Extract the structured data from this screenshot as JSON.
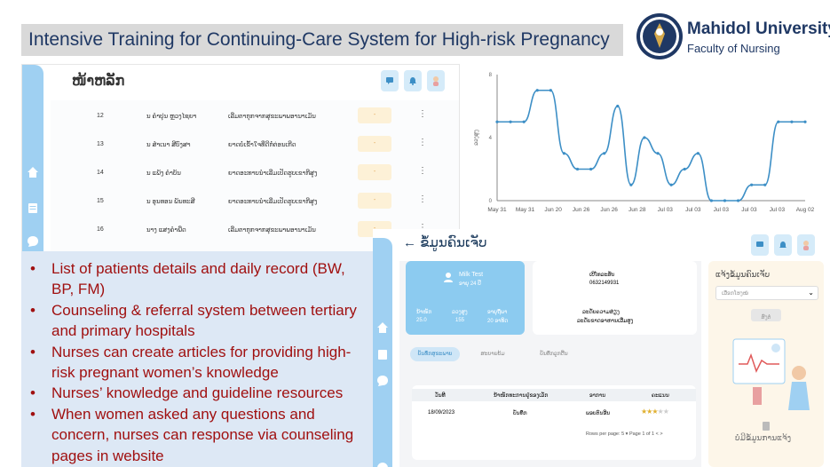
{
  "slide": {
    "title": "Intensive Training for Continuing-Care System for High-risk Pregnancy",
    "logo": {
      "university": "Mahidol University",
      "faculty": "Faculty of Nursing",
      "seal_icon": "university-seal-icon"
    }
  },
  "patient_list": {
    "page_title": "ໜ້າຫລັກ",
    "rows": [
      {
        "num": "12",
        "name": "ນ ຄຳປຸນ ຫຼວງໄຊຍາ",
        "status": "ເລີ່ມຕາກຸກຈາກສຸຂະພາພອານາເມັ່ນ",
        "badge": "-"
      },
      {
        "num": "13",
        "name": "ນ ສຳເນາ ສີບົງສາ",
        "status": "ຍາດບໍ່ເຂົ້າໃຈທີ່ດີກໍ່ຕ່ອນເກີດ",
        "badge": "-"
      },
      {
        "num": "14",
        "name": "ນ ແພັງ ຄຳບັນ",
        "status": "ຍາດອະທາບນຳເລີ່ມເປັດຮູບເຂາກີສູງ",
        "badge": "-"
      },
      {
        "num": "15",
        "name": "ນ ອຸນທອນ ພັນທະສີ",
        "status": "ຍາດອະທາບນຳເລີ່ມເປັດຮູບເຂາກີສູງ",
        "badge": "-"
      },
      {
        "num": "16",
        "name": "ນາງ ແສງຄຳພີ່ດ",
        "status": "ເລີ່ມຕາກຸກຈາກສຸຂະພາພອານາເມັ່ນ",
        "badge": "-"
      }
    ]
  },
  "bullets": [
    "List of patients details and daily record (BW, BP, FM)",
    "Counseling & referral system between tertiary and primary hospitals",
    "Nurses can create articles for providing high-risk pregnant women’s knowledge",
    "Nurses’ knowledge and guideline resources",
    "When women asked any questions and concern, nurses can response via counseling pages in website"
  ],
  "delivery": {
    "page_title": "ຂໍ້ມູນຄົນເຈັບ",
    "patient_name": "Milk Test",
    "patient_age": "ອາຍຸ 24 ປີ",
    "stats": [
      {
        "label": "ນ້ຳໜັກ",
        "value": "25.0"
      },
      {
        "label": "ລວງສູງ",
        "value": "155"
      },
      {
        "label": "ອາຍຸຖືພາ",
        "value": "20 ອາທິດ"
      }
    ],
    "phone_label": "ເບີໂທລະສັບ",
    "phone": "0632149931",
    "risk_label": "ລະດັບຄວາມສ່ຽງ",
    "risk_value": "ລະດັບຂາດອາຫານເລີ່ມສູງ",
    "tabs": [
      "ບັນທຶກສຸຂະພາບ",
      "ສະບາຍບ້ມ",
      "ບັນທຶກລູກດີ້ນ"
    ],
    "table_headers": [
      "ວັນທີ",
      "ນ້ຳໜັກທະການຢູ່ຂອງເລັກ",
      "ອາການ",
      "ຄະແນນ"
    ],
    "table_row": [
      "18/09/2023",
      "ບັນທຶກ",
      "ພອບຕົນອີນ",
      ""
    ],
    "rating": 3,
    "pagination": {
      "rows_label": "Rows per page:",
      "rows_value": "5",
      "page_text": "Page 1 of 1"
    },
    "panel_title": "ແຈ້ງຂໍ້ມູນຄົນເຈັບ",
    "panel_select": "ເລືອກໂຮງໝໍ",
    "panel_button": "ສົ່ງຕໍ່",
    "panel_empty": "ບໍ່ມີຂໍ້ມູນການແຈ້ງ"
  },
  "colors": {
    "accent_blue": "#9fd0f2",
    "bullet_red": "#a01010",
    "chart_line": "#3d8fc6"
  },
  "chart_data": {
    "type": "line",
    "title": "",
    "xlabel": "",
    "ylabel": "ລວງສູງ",
    "ylim": [
      0,
      8
    ],
    "yticks": [
      "0",
      "4",
      "8"
    ],
    "x_tick_labels": [
      "May 31",
      "May 31",
      "Jun 20",
      "Jun 26",
      "Jun 26",
      "Jun 28",
      "Jul 03",
      "Jul 03",
      "Jul 03",
      "Jul 03",
      "Jul 03",
      "Aug 02"
    ],
    "series": [
      {
        "values": [
          5,
          5,
          5,
          7,
          7,
          3,
          2,
          2,
          3,
          6,
          1,
          4,
          3,
          1,
          2,
          3,
          0,
          0,
          0,
          1,
          1,
          5,
          5,
          5
        ]
      }
    ],
    "grid": false
  }
}
